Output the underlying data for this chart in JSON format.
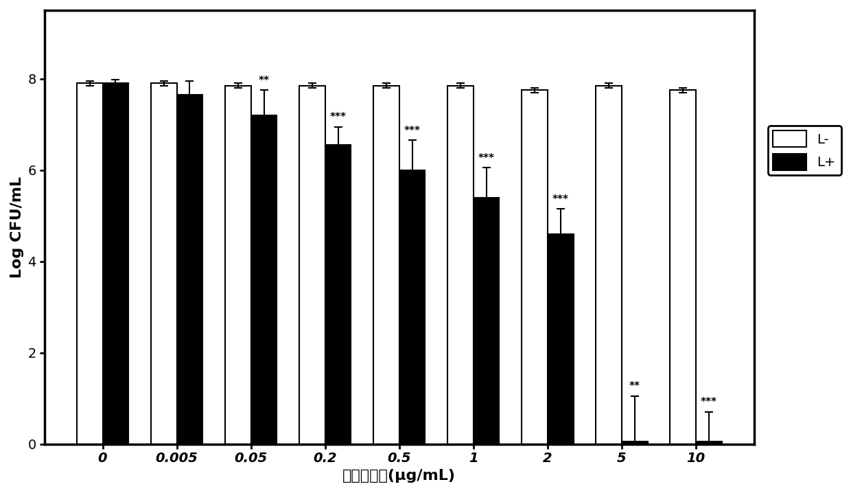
{
  "categories": [
    "0",
    "0.005",
    "0.05",
    "0.2",
    "0.5",
    "1",
    "2",
    "5",
    "10"
  ],
  "L_minus_values": [
    7.9,
    7.9,
    7.85,
    7.85,
    7.85,
    7.85,
    7.75,
    7.85,
    7.75
  ],
  "L_minus_errors": [
    0.05,
    0.05,
    0.05,
    0.05,
    0.05,
    0.05,
    0.05,
    0.05,
    0.05
  ],
  "L_plus_values": [
    7.9,
    7.65,
    7.2,
    6.55,
    6.0,
    5.4,
    4.6,
    0.05,
    0.05
  ],
  "L_plus_errors": [
    0.08,
    0.3,
    0.55,
    0.4,
    0.65,
    0.65,
    0.55,
    1.0,
    0.65
  ],
  "significance": [
    "",
    "",
    "**",
    "***",
    "***",
    "***",
    "***",
    "**",
    "***"
  ],
  "ylabel": "Log CFU/mL",
  "xlabel": "光敏剂浓度(μg/mL)",
  "ylim": [
    0,
    9.5
  ],
  "yticks": [
    0,
    2,
    4,
    6,
    8
  ],
  "legend_labels": [
    "L-",
    "L+"
  ],
  "bar_width": 0.35,
  "colors": [
    "white",
    "black"
  ],
  "edge_color": "black",
  "background_color": "white",
  "axis_fontsize": 16,
  "tick_fontsize": 14,
  "legend_fontsize": 14,
  "sig_fontsize": 11
}
